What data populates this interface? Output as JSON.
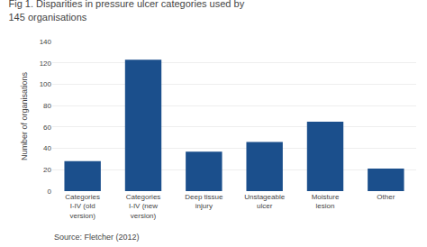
{
  "chart_data": {
    "type": "bar",
    "title": "Fig 1. Disparities in pressure ulcer categories used by\n145 organisations",
    "categories": [
      "Categories\nI-IV (old\nversion)",
      "Categories\nI-IV (new\nversion)",
      "Deep tissue\ninjury",
      "Unstageable\nulcer",
      "Moisture\nlesion",
      "Other"
    ],
    "values": [
      28,
      123,
      37,
      46,
      65,
      21
    ],
    "color": "#1b4f8c",
    "ylabel": "Number of organisations",
    "ylim": [
      0,
      140
    ],
    "yticks": [
      0,
      20,
      40,
      60,
      80,
      100,
      120,
      140
    ],
    "grid": true,
    "annotations": [
      "Source: Fletcher (2012)"
    ]
  }
}
